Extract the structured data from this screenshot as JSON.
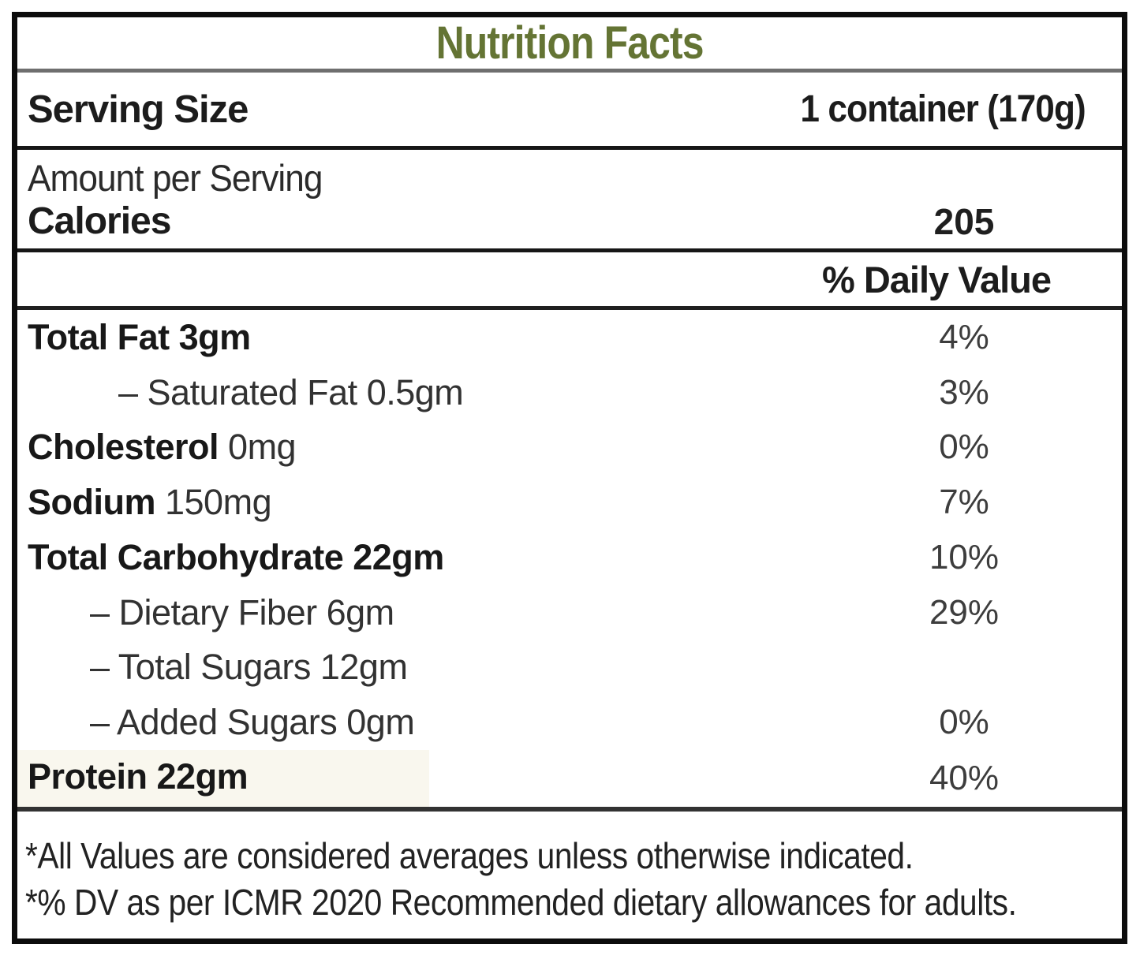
{
  "title": "Nutrition Facts",
  "colors": {
    "title_green": "#647434",
    "rule_gray": "#6f6f6f",
    "rule_black": "#161616",
    "protein_highlight": "#f9f7ee"
  },
  "serving": {
    "label": "Serving Size",
    "value": "1 container (170g)"
  },
  "calories": {
    "subheading": "Amount per Serving",
    "label": "Calories",
    "value": "205"
  },
  "daily_value_header": "% Daily Value",
  "nutrients": [
    {
      "name": "Total Fat",
      "amount": "3gm",
      "dv": "4%",
      "bold_name": true,
      "bold_amount": true,
      "indent": false
    },
    {
      "name": "– Saturated Fat",
      "amount": "0.5gm",
      "dv": "3%",
      "bold_name": false,
      "bold_amount": false,
      "indent": true
    },
    {
      "name": "Cholesterol",
      "amount": "0mg",
      "dv": "0%",
      "bold_name": true,
      "bold_amount": false,
      "indent": false
    },
    {
      "name": "Sodium",
      "amount": "150mg",
      "dv": "7%",
      "bold_name": true,
      "bold_amount": false,
      "indent": false
    },
    {
      "name": "Total Carbohydrate",
      "amount": "22gm",
      "dv": "10%",
      "bold_name": true,
      "bold_amount": true,
      "indent": false
    },
    {
      "name": "– Dietary Fiber",
      "amount": "6gm",
      "dv": "29%",
      "bold_name": false,
      "bold_amount": false,
      "indent": true
    },
    {
      "name": "– Total Sugars",
      "amount": "12gm",
      "dv": "",
      "bold_name": false,
      "bold_amount": false,
      "indent": true
    },
    {
      "name": "– Added Sugars",
      "amount": "0gm",
      "dv": "0%",
      "bold_name": false,
      "bold_amount": false,
      "indent": true
    },
    {
      "name": "Protein",
      "amount": "22gm",
      "dv": "40%",
      "bold_name": true,
      "bold_amount": true,
      "indent": false,
      "highlight": true
    }
  ],
  "footnotes": [
    "*All Values are considered averages unless otherwise indicated.",
    "*% DV as per ICMR 2020 Recommended dietary allowances for adults."
  ]
}
